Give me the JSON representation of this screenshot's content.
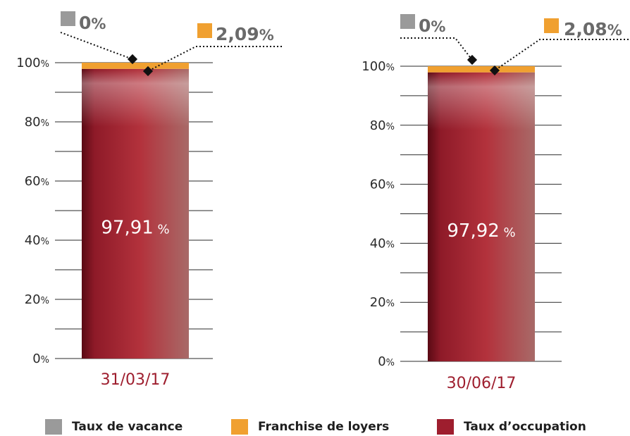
{
  "colors": {
    "vacance": "#9a9a9a",
    "franchise": "#f0a030",
    "occupation": "#9e1e2e",
    "date_label": "#9e1e2e",
    "axis_text": "#2a2a2a"
  },
  "legend": [
    {
      "label": "Taux de vacance",
      "color": "#9a9a9a"
    },
    {
      "label": "Franchise de loyers",
      "color": "#f0a030"
    },
    {
      "label": "Taux d’occupation",
      "color": "#9e1e2e"
    }
  ],
  "chart_data": [
    {
      "type": "bar",
      "stacked": true,
      "categories": [
        "31/03/17"
      ],
      "ylim": [
        0,
        100
      ],
      "y_ticks": [
        0,
        20,
        40,
        60,
        80,
        100
      ],
      "y_tick_unit": "%",
      "series": [
        {
          "name": "Taux d’occupation",
          "values": [
            97.91
          ],
          "label": "97,91",
          "unit": "%"
        },
        {
          "name": "Franchise de loyers",
          "values": [
            2.09
          ],
          "label": "2,09",
          "unit": "%"
        },
        {
          "name": "Taux de vacance",
          "values": [
            0
          ],
          "label": "0",
          "unit": "%"
        }
      ]
    },
    {
      "type": "bar",
      "stacked": true,
      "categories": [
        "30/06/17"
      ],
      "ylim": [
        0,
        100
      ],
      "y_ticks": [
        0,
        20,
        40,
        60,
        80,
        100
      ],
      "y_tick_unit": "%",
      "series": [
        {
          "name": "Taux d’occupation",
          "values": [
            97.92
          ],
          "label": "97,92",
          "unit": "%"
        },
        {
          "name": "Franchise de loyers",
          "values": [
            2.08
          ],
          "label": "2,08",
          "unit": "%"
        },
        {
          "name": "Taux de vacance",
          "values": [
            0
          ],
          "label": "0",
          "unit": "%"
        }
      ]
    }
  ]
}
